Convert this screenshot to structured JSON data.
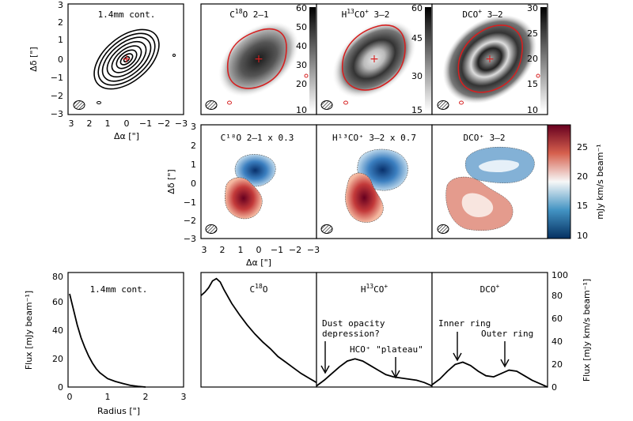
{
  "top_row": {
    "panels": [
      {
        "title": "1.4mm cont."
      },
      {
        "title_main": "C",
        "title_sup": "18",
        "title_rest": "O 2–1",
        "colorbar_ticks": [
          "60",
          "50",
          "40",
          "30",
          "20",
          "10"
        ]
      },
      {
        "title_main": "H",
        "title_sup": "13",
        "title_rest": "CO",
        "title_sup2": "+",
        "title_end": " 3–2",
        "colorbar_ticks": [
          "60",
          "45",
          "30",
          "15"
        ]
      },
      {
        "title_main": "DCO",
        "title_sup": "+",
        "title_rest": " 3–2",
        "colorbar_ticks": [
          "30",
          "25",
          "20",
          "15",
          "10"
        ]
      }
    ],
    "y_ticks": [
      "3",
      "2",
      "1",
      "0",
      "−1",
      "−2",
      "−3"
    ],
    "x_ticks": [
      "3",
      "2",
      "1",
      "0",
      "−1",
      "−2",
      "−3"
    ],
    "ylabel": "Δδ [\"]",
    "xlabel": "Δα [\"]"
  },
  "middle_row": {
    "panels": [
      {
        "title": "C¹⁸O 2–1 x 0.3"
      },
      {
        "title": "H¹³CO⁺ 3–2 x 0.7"
      },
      {
        "title": "DCO⁺ 3–2"
      }
    ],
    "colorbar_ticks": [
      "25",
      "20",
      "15",
      "10"
    ],
    "colorbar_label": "mJy km/s beam⁻¹",
    "ylabel": "Δδ [\"]",
    "xlabel": "Δα [\"]",
    "y_ticks": [
      "3",
      "2",
      "1",
      "0",
      "−1",
      "−2",
      "−3"
    ],
    "x_ticks": [
      "3",
      "2",
      "1",
      "0",
      "−1",
      "−2",
      "−3"
    ]
  },
  "chart_data": [
    {
      "type": "line",
      "title": "1.4mm cont.",
      "xlabel": "Radius [\"]",
      "ylabel": "Flux [mJy beam⁻¹]",
      "x": [
        0,
        0.1,
        0.2,
        0.3,
        0.4,
        0.5,
        0.6,
        0.7,
        0.8,
        0.9,
        1.0,
        1.2,
        1.4,
        1.6,
        1.8,
        2.0
      ],
      "y": [
        66,
        55,
        44,
        35,
        28,
        22,
        17,
        13,
        10,
        8,
        6,
        4,
        2.5,
        1.2,
        0.5,
        0
      ],
      "xlim": [
        0,
        3
      ],
      "ylim": [
        0,
        80
      ],
      "x_ticks": [
        "0",
        "1",
        "2",
        "3"
      ],
      "y_ticks": [
        "0",
        "20",
        "40",
        "60",
        "80"
      ]
    },
    {
      "type": "line",
      "title_main": "C",
      "title_sup": "18",
      "title_rest": "O",
      "x": [
        0,
        0.1,
        0.2,
        0.3,
        0.4,
        0.5,
        0.6,
        0.8,
        1.0,
        1.2,
        1.4,
        1.6,
        1.8,
        2.0,
        2.2,
        2.4,
        2.6,
        2.8,
        3.0
      ],
      "y": [
        81,
        84,
        88,
        94,
        96,
        93,
        86,
        74,
        64,
        55,
        47,
        40,
        34,
        27,
        22,
        17,
        12,
        8,
        4
      ],
      "xlim": [
        0,
        3
      ],
      "ylim": [
        0,
        100
      ]
    },
    {
      "type": "line",
      "title_main": "H",
      "title_sup": "13",
      "title_rest": "CO",
      "title_sup2": "+",
      "x": [
        0,
        0.2,
        0.4,
        0.6,
        0.8,
        1.0,
        1.2,
        1.4,
        1.6,
        1.8,
        2.0,
        2.2,
        2.4,
        2.6,
        2.8,
        3.0
      ],
      "y": [
        1,
        6,
        12,
        18,
        23,
        25,
        23,
        19,
        15,
        11,
        9,
        8,
        7,
        6,
        4,
        1
      ],
      "xlim": [
        0,
        3
      ],
      "ylim": [
        0,
        100
      ],
      "annotations": [
        "Dust opacity",
        "depression?",
        "HCO⁺ \"plateau\""
      ]
    },
    {
      "type": "line",
      "title_main": "DCO",
      "title_sup": "+",
      "xlabel": "",
      "ylabel": "Flux [mJy km/s beam⁻¹]",
      "x": [
        0,
        0.2,
        0.4,
        0.6,
        0.8,
        1.0,
        1.2,
        1.4,
        1.6,
        1.8,
        2.0,
        2.2,
        2.4,
        2.6,
        2.8,
        3.0
      ],
      "y": [
        2,
        7,
        14,
        20,
        22,
        19,
        14,
        10,
        9,
        12,
        15,
        14,
        10,
        6,
        3,
        0
      ],
      "xlim": [
        0,
        3
      ],
      "ylim": [
        0,
        100
      ],
      "y_ticks": [
        "0",
        "20",
        "40",
        "60",
        "80",
        "100"
      ],
      "annotations": [
        "Inner ring",
        "Outer ring"
      ]
    }
  ],
  "colors": {
    "red_contour": "#d62020",
    "red_map": "#b2182b",
    "blue_map": "#2166ac"
  }
}
